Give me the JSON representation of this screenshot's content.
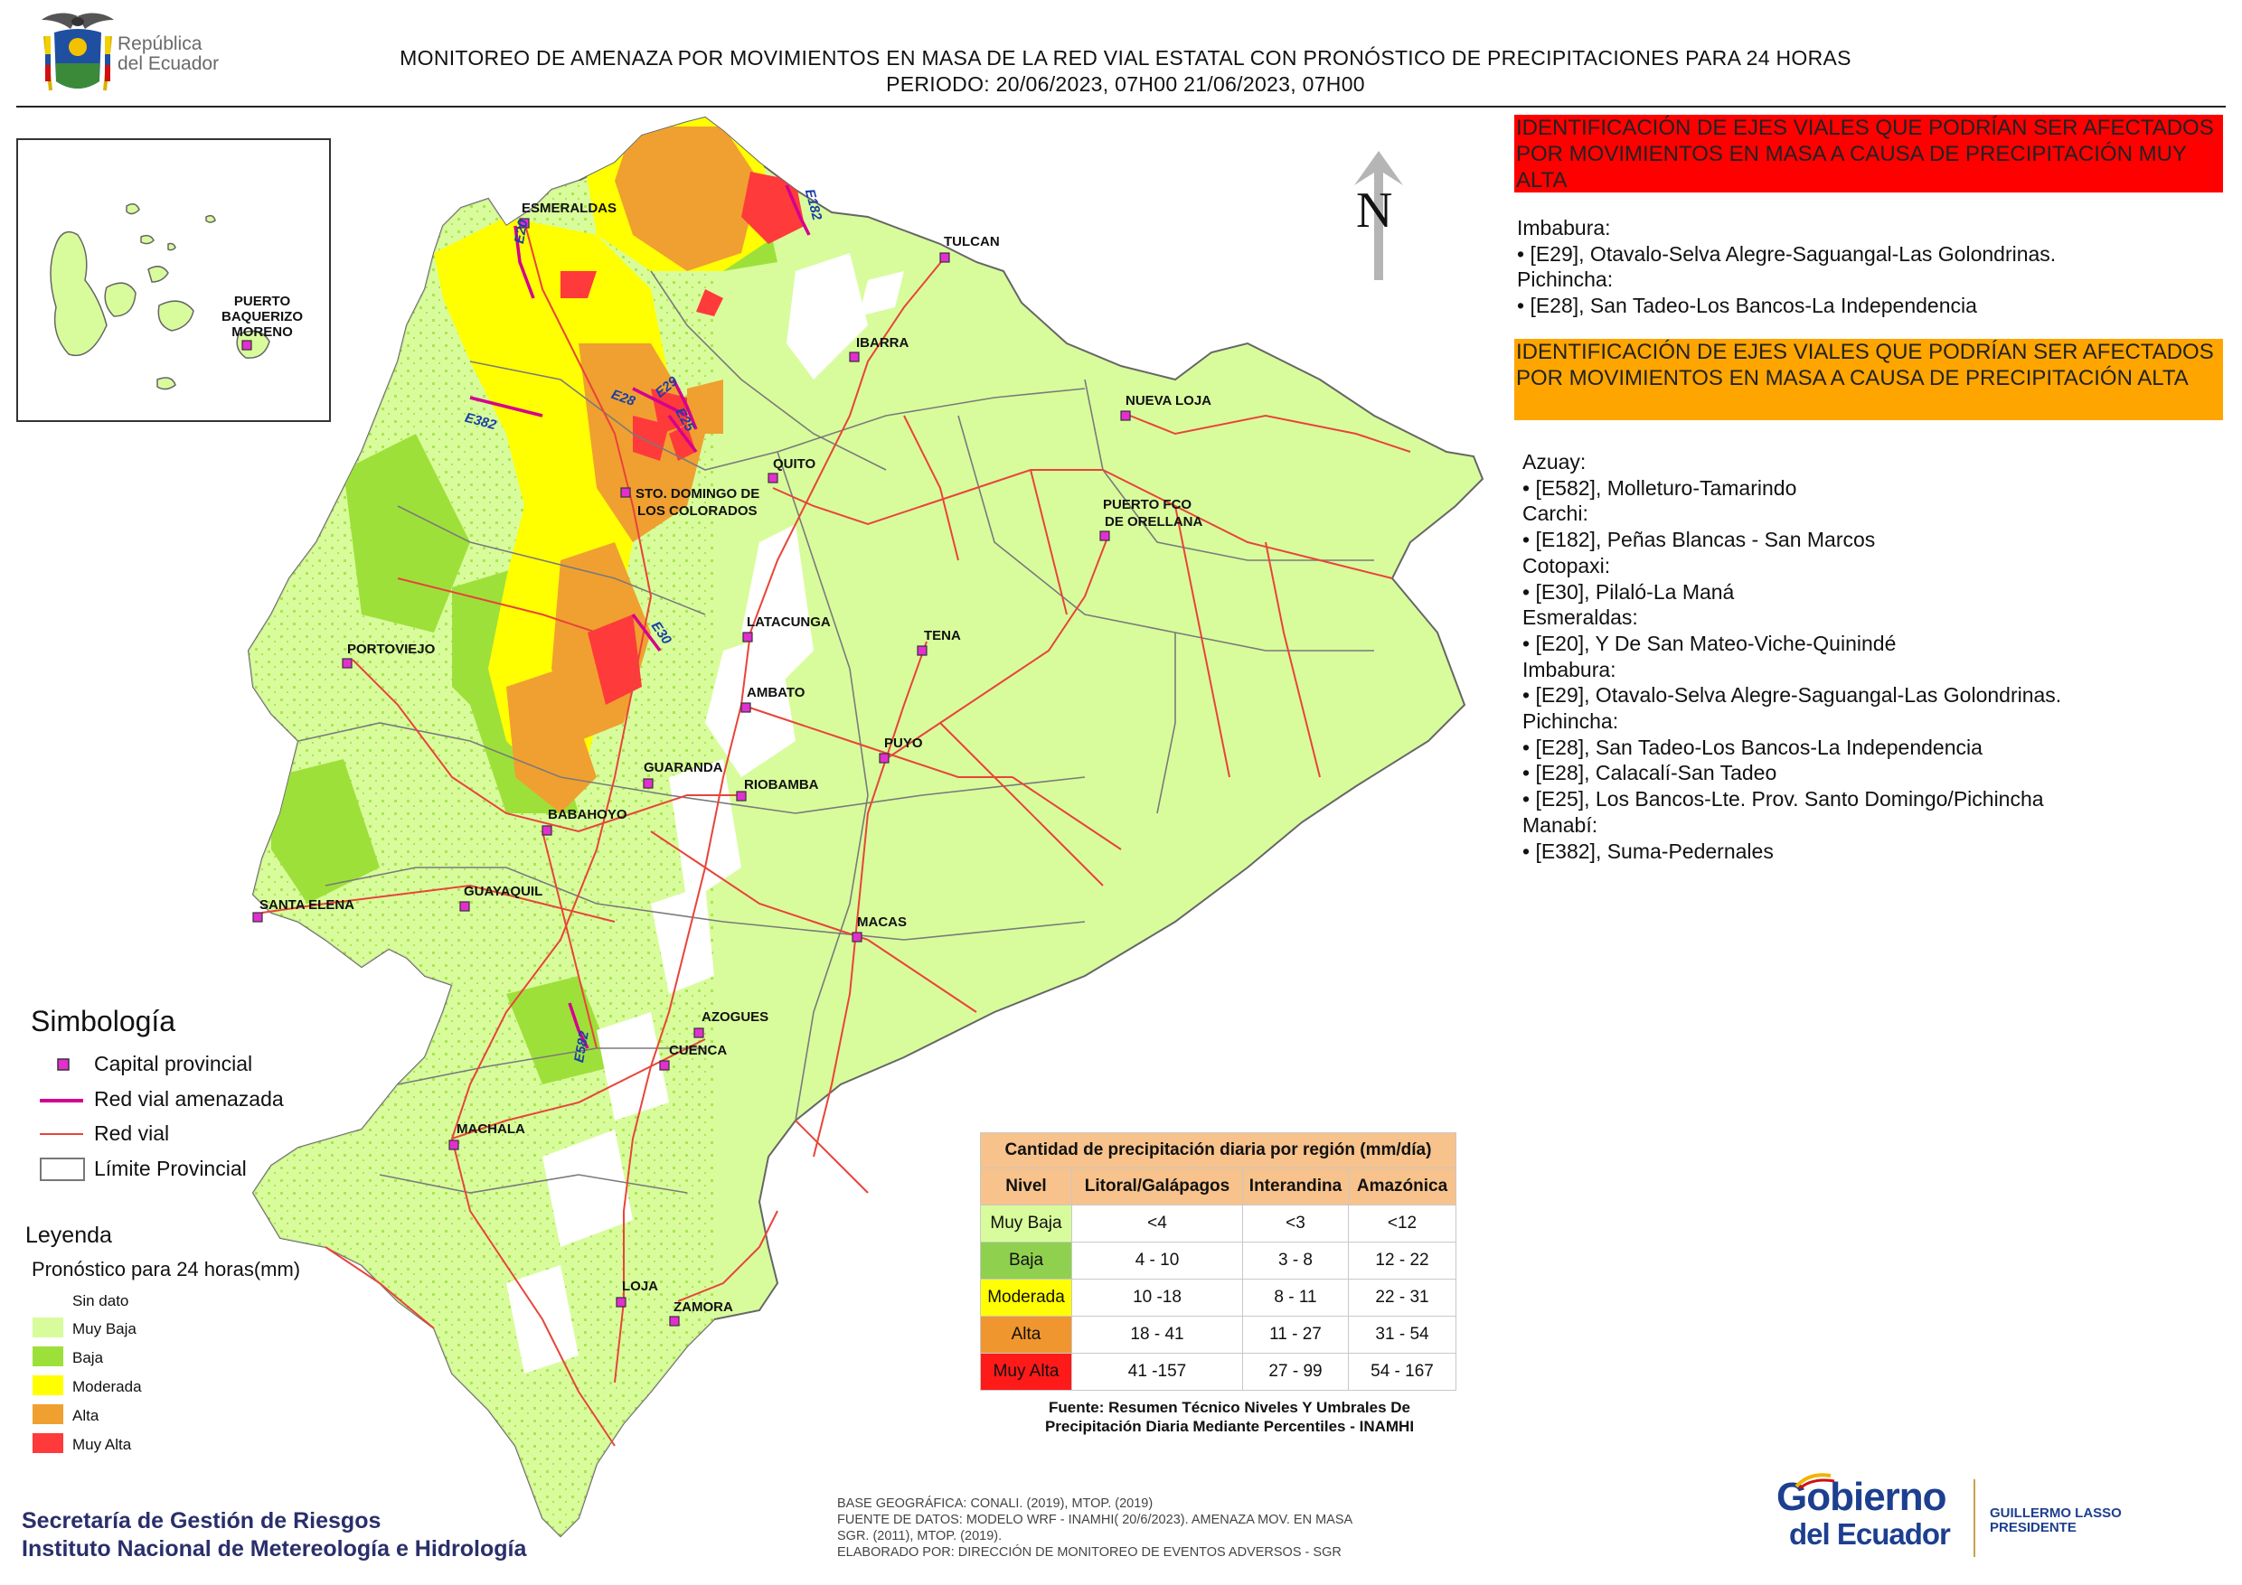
{
  "header": {
    "title_line1": "MONITOREO DE AMENAZA POR MOVIMIENTOS EN MASA DE LA RED VIAL  ESTATAL  CON PRONÓSTICO  DE  PRECIPITACIONES PARA 24 HORAS",
    "title_line2": "PERIODO: 20/06/2023, 07H00 21/06/2023, 07H00",
    "logo_text_line1": "República",
    "logo_text_line2": "del Ecuador"
  },
  "map": {
    "north_label": "N",
    "cities": [
      {
        "name": "ESMERALDAS"
      },
      {
        "name": "TULCAN"
      },
      {
        "name": "IBARRA"
      },
      {
        "name": "NUEVA LOJA"
      },
      {
        "name": "QUITO"
      },
      {
        "name": "STO. DOMINGO DE"
      },
      {
        "name": "LOS COLORADOS"
      },
      {
        "name": "PUERTO FCO"
      },
      {
        "name": "DE ORELLANA"
      },
      {
        "name": "LATACUNGA"
      },
      {
        "name": "TENA"
      },
      {
        "name": "PORTOVIEJO"
      },
      {
        "name": "AMBATO"
      },
      {
        "name": "PUYO"
      },
      {
        "name": "GUARANDA"
      },
      {
        "name": "RIOBAMBA"
      },
      {
        "name": "BABAHOYO"
      },
      {
        "name": "GUAYAQUIL"
      },
      {
        "name": "SANTA ELENA"
      },
      {
        "name": "MACAS"
      },
      {
        "name": "AZOGUES"
      },
      {
        "name": "CUENCA"
      },
      {
        "name": "MACHALA"
      },
      {
        "name": "LOJA"
      },
      {
        "name": "ZAMORA"
      }
    ],
    "inset_city_lines": [
      "PUERTO",
      "BAQUERIZO",
      "MORENO"
    ],
    "road_labels": [
      "E20",
      "E182",
      "E28",
      "E29",
      "E25",
      "E382",
      "E30",
      "E582"
    ]
  },
  "very_high_panel": {
    "heading": "IDENTIFICACIÓN DE EJES VIALES QUE PODRÍAN SER AFECTADOS POR MOVIMIENTOS EN MASA A CAUSA DE PRECIPITACIÓN MUY ALTA",
    "lines": [
      "Imbabura:",
      "• [E29], Otavalo-Selva Alegre-Saguangal-Las Golondrinas.",
      "Pichincha:",
      "• [E28], San Tadeo-Los Bancos-La Independencia"
    ]
  },
  "high_panel": {
    "heading": "IDENTIFICACIÓN DE EJES VIALES QUE PODRÍAN SER AFECTADOS POR MOVIMIENTOS EN MASA A CAUSA DE PRECIPITACIÓN  ALTA",
    "lines": [
      "Azuay:",
      "• [E582], Molleturo-Tamarindo",
      "Carchi:",
      "• [E182], Peñas Blancas - San Marcos",
      "Cotopaxi:",
      "• [E30], Pilaló-La Maná",
      "Esmeraldas:",
      "• [E20], Y De San Mateo-Viche-Quinindé",
      "Imbabura:",
      "• [E29], Otavalo-Selva Alegre-Saguangal-Las Golondrinas.",
      "Pichincha:",
      "• [E28], San Tadeo-Los Bancos-La Independencia",
      "• [E28], Calacalí-San Tadeo",
      "• [E25], Los Bancos-Lte. Prov. Santo Domingo/Pichincha",
      "Manabí:",
      "• [E382], Suma-Pedernales"
    ]
  },
  "simbologia": {
    "title": "Simbología",
    "items": [
      {
        "label": "Capital provincial",
        "symbol": "capital-square-icon"
      },
      {
        "label": "Red vial amenazada",
        "color": "#d4008f"
      },
      {
        "label": "Red vial",
        "color": "#e8443a"
      },
      {
        "label": "Límite Provincial",
        "symbol": "outline-box"
      }
    ]
  },
  "leyenda": {
    "title": "Leyenda",
    "subtitle": "Pronóstico para 24 horas(mm)",
    "classes": [
      {
        "label": "Sin dato",
        "color": "#ffffff"
      },
      {
        "label": "Muy Baja",
        "color": "#d8fc9c"
      },
      {
        "label": "Baja",
        "color": "#9ee03a"
      },
      {
        "label": "Moderada",
        "color": "#ffff00"
      },
      {
        "label": "Alta",
        "color": "#f0a030"
      },
      {
        "label": "Muy Alta",
        "color": "#ff3a3a"
      }
    ]
  },
  "precip_table": {
    "title": "Cantidad de precipitación diaria por región (mm/día)",
    "headers": [
      "Nivel",
      "Litoral/Galápagos",
      "Interandina",
      "Amazónica"
    ],
    "rows": [
      {
        "level": "Muy Baja",
        "color": "#d8fc9c",
        "values": [
          "<4",
          "<3",
          "<12"
        ]
      },
      {
        "level": "Baja",
        "color": "#8fd14f",
        "values": [
          "4 - 10",
          "3 - 8",
          "12 - 22"
        ]
      },
      {
        "level": "Moderada",
        "color": "#ffff00",
        "values": [
          "10 -18",
          "8 - 11",
          "22 - 31"
        ]
      },
      {
        "level": "Alta",
        "color": "#f0962e",
        "values": [
          "18 - 41",
          "11 - 27",
          "31 - 54"
        ]
      },
      {
        "level": "Muy Alta",
        "color": "#ff1a1a",
        "values": [
          "41 -157",
          "27 - 99",
          "54 - 167"
        ]
      }
    ],
    "source_line1": "Fuente: Resumen Técnico Niveles Y Umbrales De",
    "source_line2": "Precipitación Diaria Mediante Percentiles - INAMHI"
  },
  "footer": {
    "org_line1": "Secretaría de Gestión de Riesgos",
    "org_line2": "Instituto Nacional de Metereología e Hidrología",
    "sources": [
      "BASE GEOGRÁFICA: CONALI. (2019), MTOP. (2019)",
      "FUENTE DE DATOS: MODELO WRF - INAMHI( 20/6/2023).  AMENAZA MOV. EN MASA",
      "SGR. (2011), MTOP. (2019).",
      "ELABORADO POR: DIRECCIÓN DE MONITOREO DE EVENTOS ADVERSOS - SGR"
    ],
    "gob_line1": "Gobierno",
    "gob_line2": "del Ecuador",
    "president_name": "GUILLERMO LASSO",
    "president_title": "PRESIDENTE"
  }
}
